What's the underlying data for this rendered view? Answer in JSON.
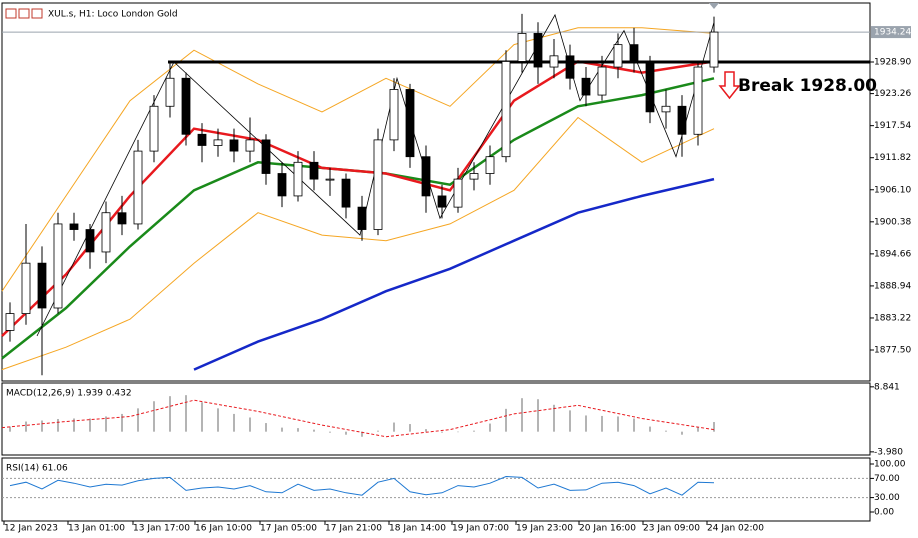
{
  "chart_data": [
    {
      "type": "candlestick",
      "title": "XUL.s, H1: Loco London Gold",
      "x": [
        2,
        6,
        10,
        14,
        18,
        22,
        26,
        30,
        34,
        38,
        42,
        46,
        50,
        54,
        58,
        62,
        66,
        70,
        74,
        78,
        82,
        86,
        90,
        94,
        98,
        102,
        106,
        110,
        114,
        118,
        122,
        126,
        130,
        134,
        138,
        142,
        146,
        150,
        154,
        158,
        162,
        166,
        170,
        174,
        178
      ],
      "open": [
        1881,
        1884,
        1893,
        1885,
        1900,
        1899,
        1895,
        1902,
        1900,
        1913,
        1921,
        1926,
        1916,
        1914,
        1915,
        1913,
        1915,
        1909,
        1905,
        1911,
        1908,
        1908,
        1903,
        1899,
        1915,
        1924,
        1912,
        1905,
        1903,
        1908,
        1909,
        1912,
        1929,
        1934,
        1928,
        1930,
        1926,
        1923,
        1928,
        1932,
        1929,
        1920,
        1921,
        1916,
        1928
      ],
      "high": [
        1886,
        1900,
        1896,
        1902,
        1902,
        1900,
        1904,
        1905,
        1915,
        1923,
        1928.9,
        1927,
        1918,
        1917,
        1917,
        1919,
        1916,
        1911,
        1913,
        1913,
        1910,
        1909,
        1905,
        1917,
        1926,
        1925,
        1914,
        1907,
        1910,
        1911,
        1914,
        1931,
        1937.5,
        1936,
        1933,
        1932,
        1928,
        1930,
        1934,
        1935,
        1930,
        1924,
        1923,
        1929,
        1937
      ],
      "low": [
        1879,
        1882,
        1873,
        1884,
        1897,
        1892,
        1893,
        1898,
        1899,
        1911,
        1919,
        1914,
        1911,
        1912,
        1911,
        1911,
        1907,
        1903,
        1904,
        1906,
        1905,
        1901,
        1897,
        1898,
        1913,
        1910,
        1902,
        1901,
        1902,
        1906,
        1907,
        1911,
        1927,
        1925,
        1926,
        1924,
        1921,
        1922,
        1926,
        1927,
        1918,
        1917,
        1912,
        1914,
        1927
      ],
      "close": [
        1884,
        1893,
        1885,
        1900,
        1899,
        1895,
        1902,
        1900,
        1913,
        1921,
        1926,
        1916,
        1914,
        1915,
        1913,
        1915,
        1909,
        1905,
        1911,
        1908,
        1908,
        1903,
        1899,
        1915,
        1924,
        1912,
        1905,
        1903,
        1908,
        1909,
        1912,
        1929,
        1934,
        1928,
        1930,
        1926,
        1923,
        1928,
        1932,
        1929,
        1920,
        1921,
        1916,
        1928,
        1934.24
      ],
      "xlim": [
        0,
        217
      ],
      "ylim": [
        1871.97,
        1939.43
      ],
      "yticks": [
        {
          "value": 1928.9,
          "label": "1928.90"
        },
        1923.26,
        1917.54,
        1911.82,
        {
          "value": 1906.1,
          "label": "1906.10"
        },
        1900.38,
        1894.66,
        1888.94,
        1883.22,
        {
          "value": 1877.5,
          "label": "1877.50"
        }
      ],
      "line_x": [
        0,
        16,
        32,
        48,
        64,
        80,
        96,
        112,
        128,
        144,
        160,
        178
      ],
      "lines": [
        {
          "color": "#f5a623",
          "values": [
            1888,
            1905,
            1922,
            1931,
            1925,
            1920,
            1926,
            1921,
            1932,
            1935,
            1935,
            1934
          ]
        },
        {
          "color": "#f5a623",
          "values": [
            1874,
            1878,
            1883,
            1893,
            1902,
            1898,
            1897,
            1900,
            1906,
            1919,
            1911,
            1917
          ]
        },
        {
          "color": "#1a8a1a",
          "values": [
            1876,
            1885,
            1896,
            1906,
            1911,
            1910,
            1909,
            1907,
            1915,
            1921,
            1923,
            1926
          ]
        },
        {
          "color": "#e8191e",
          "values": [
            1880,
            1891,
            1905,
            1917,
            1915,
            1910,
            1909,
            1906,
            1922,
            1929,
            1927,
            1929
          ]
        },
        {
          "color": "#1528c8",
          "values": [
            null,
            null,
            null,
            1874,
            1879,
            1883,
            1888,
            1892,
            1897,
            1902,
            1905,
            1908
          ]
        }
      ],
      "zigzag": {
        "x": [
          8.75,
          43,
          89.5,
          98.75,
          109.5,
          138.25,
          144.5,
          155.5,
          168.5,
          178
        ],
        "values": [
          1880,
          1928.9,
          1898,
          1926,
          1901,
          1937.3,
          1922,
          1934.5,
          1912,
          1936
        ]
      },
      "level": {
        "value": 1928.9,
        "x": 41.5,
        "color": "#000000"
      },
      "current_price": 1934.24,
      "annotation": "Break 1928.00"
    },
    {
      "type": "macd",
      "title": "MACD(12,26,9) 1.939 0.432",
      "x": [
        2,
        6,
        10,
        14,
        18,
        22,
        26,
        30,
        34,
        38,
        42,
        46,
        50,
        54,
        58,
        62,
        66,
        70,
        74,
        78,
        82,
        86,
        90,
        94,
        98,
        102,
        106,
        110,
        114,
        118,
        122,
        126,
        130,
        134,
        138,
        142,
        146,
        150,
        154,
        158,
        162,
        166,
        170,
        174,
        178
      ],
      "values": [
        1.0,
        2.0,
        2.2,
        2.5,
        2.6,
        2.6,
        3.0,
        3.5,
        4.6,
        6.0,
        7.0,
        7.2,
        5.8,
        4.6,
        3.5,
        2.8,
        1.7,
        0.8,
        0.7,
        0.4,
        -0.2,
        -0.6,
        -1.0,
        0.2,
        1.8,
        1.5,
        0.5,
        -0.2,
        -0.1,
        0.2,
        1.6,
        4.5,
        6.6,
        6.4,
        5.3,
        4.2,
        3.2,
        3.1,
        3.0,
        2.6,
        1.0,
        0.2,
        -0.6,
        0.9,
        1.9
      ],
      "color": "#b4b4b4",
      "signal": {
        "x": [
          0,
          16,
          32,
          48,
          64,
          80,
          96,
          112,
          128,
          144,
          160,
          178
        ],
        "values": [
          0.8,
          2.0,
          3.0,
          6.2,
          4.0,
          1.3,
          -1.0,
          0.4,
          3.5,
          5.2,
          2.6,
          0.4
        ],
        "color": "#e8191e"
      },
      "ylim": [
        -4.6,
        9.4
      ],
      "yticks": [
        8.841,
        {
          "value": -3.98,
          "label": "-3.980"
        }
      ]
    },
    {
      "type": "rsi",
      "title": "RSI(14) 61.06",
      "x": [
        2,
        6,
        10,
        14,
        18,
        22,
        26,
        30,
        34,
        38,
        42,
        46,
        50,
        54,
        58,
        62,
        66,
        70,
        74,
        78,
        82,
        86,
        90,
        94,
        98,
        102,
        106,
        110,
        114,
        118,
        122,
        126,
        130,
        134,
        138,
        142,
        146,
        150,
        154,
        158,
        162,
        166,
        170,
        174,
        178
      ],
      "values": [
        55,
        62,
        48,
        66,
        60,
        52,
        58,
        56,
        65,
        70,
        72,
        45,
        50,
        52,
        48,
        55,
        42,
        40,
        58,
        45,
        48,
        40,
        35,
        62,
        70,
        42,
        36,
        40,
        55,
        52,
        60,
        74,
        72,
        50,
        58,
        45,
        46,
        60,
        62,
        55,
        38,
        50,
        35,
        62,
        61.06
      ],
      "color": "#1e78d2",
      "ylim": [
        -18.75,
        112.5
      ],
      "yticks": [
        {
          "value": 100,
          "label": "100.00"
        },
        {
          "value": 70,
          "label": "70.00"
        },
        {
          "value": 30,
          "label": "30.00"
        },
        {
          "value": 0,
          "label": "0.00"
        }
      ],
      "levels": [
        70,
        30
      ],
      "xticks": [
        {
          "value": 0.5,
          "label": "12 Jan 2023"
        },
        {
          "value": 16.5,
          "label": "13 Jan 01:00"
        },
        {
          "value": 32.75,
          "label": "13 Jan 17:00"
        },
        {
          "value": 48.25,
          "label": "16 Jan 10:00"
        },
        {
          "value": 64.5,
          "label": "17 Jan 05:00"
        },
        {
          "value": 80.75,
          "label": "17 Jan 21:00"
        },
        {
          "value": 96.75,
          "label": "18 Jan 14:00"
        },
        {
          "value": 112.5,
          "label": "19 Jan 07:00"
        },
        {
          "value": 128.5,
          "label": "19 Jan 23:00"
        },
        {
          "value": 144.25,
          "label": "20 Jan 16:00"
        },
        {
          "value": 160.25,
          "label": "23 Jan 09:00"
        },
        {
          "value": 176.25,
          "label": "24 Jan 02:00"
        }
      ]
    }
  ]
}
